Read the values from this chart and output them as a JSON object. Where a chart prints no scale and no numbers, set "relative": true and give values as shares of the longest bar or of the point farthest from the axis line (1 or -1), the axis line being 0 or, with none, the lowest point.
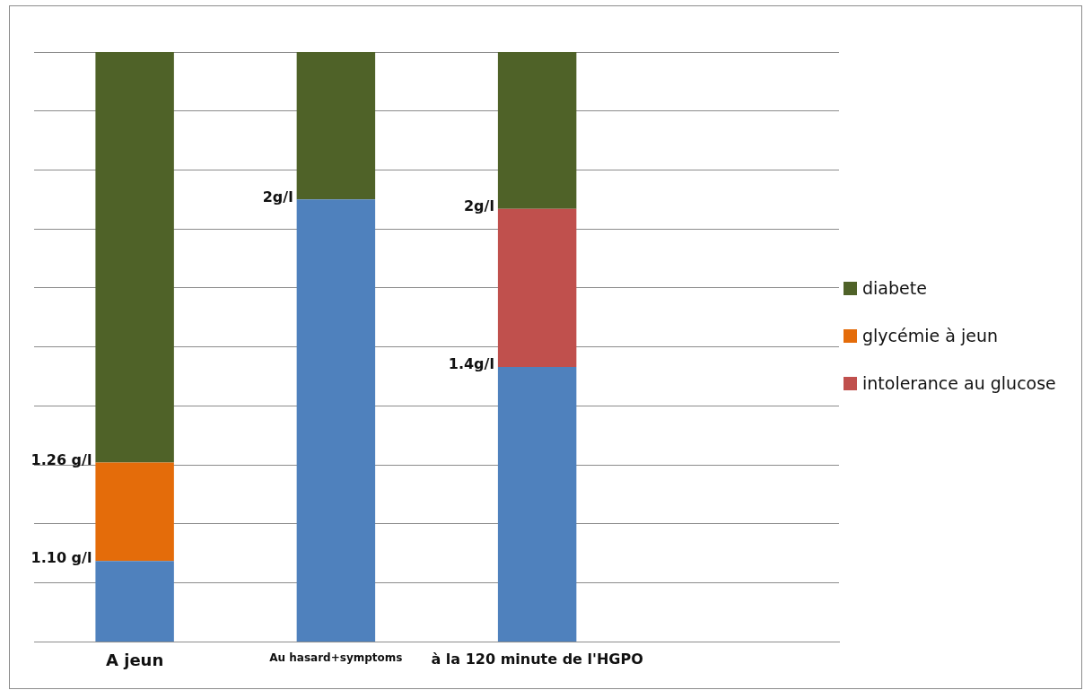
{
  "chart_data": {
    "type": "bar",
    "stacked": true,
    "relative": true,
    "grid": "y",
    "legend": "right",
    "categories": [
      "A jeun",
      "Au hasard+symptoms",
      "à la 120 minute de l'HGPO",
      null
    ],
    "series": [
      {
        "color": "#4f81bd",
        "values": [
          0.137,
          0.75,
          0.466,
          null
        ]
      },
      {
        "name": "intolerance au glucose",
        "color": "#c0504d",
        "values": [
          null,
          null,
          0.268,
          null
        ]
      },
      {
        "name": "glycémie à jeun",
        "color": "#e46c0a",
        "values": [
          0.167,
          null,
          null,
          null
        ]
      },
      {
        "name": "diabete",
        "color": "#4f6228",
        "values": [
          0.696,
          0.25,
          0.266,
          null
        ]
      }
    ],
    "annotations": [
      {
        "text": "1.26 g/l",
        "x": "A jeun",
        "y": 0.304
      },
      {
        "text": "1.10 g/l",
        "x": "A jeun",
        "y": 0.137
      },
      {
        "text": "2g/l",
        "x": "Au hasard+symptoms",
        "y": 0.75
      },
      {
        "text": "2g/l",
        "x": "à la 120 minute de l'HGPO",
        "y": 0.734
      },
      {
        "text": "1.4g/l",
        "x": "à la 120 minute de l'HGPO",
        "y": 0.466
      }
    ]
  }
}
